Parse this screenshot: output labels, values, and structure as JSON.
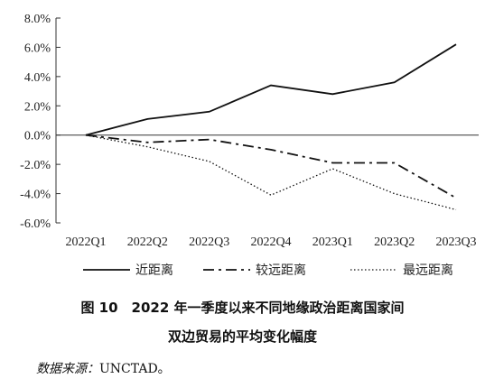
{
  "chart_data": {
    "type": "line",
    "categories": [
      "2022Q1",
      "2022Q2",
      "2022Q3",
      "2022Q4",
      "2023Q1",
      "2023Q2",
      "2023Q3"
    ],
    "series": [
      {
        "name": "近距离",
        "style": "solid",
        "values": [
          0.0,
          1.1,
          1.6,
          3.4,
          2.8,
          3.6,
          6.2
        ]
      },
      {
        "name": "较远距离",
        "style": "dash-dot",
        "values": [
          0.0,
          -0.5,
          -0.3,
          -1.0,
          -1.9,
          -1.9,
          -4.3
        ]
      },
      {
        "name": "最远距离",
        "style": "dotted",
        "values": [
          0.0,
          -0.8,
          -1.8,
          -4.1,
          -2.3,
          -4.0,
          -5.1
        ]
      }
    ],
    "y_ticks": [
      "8.0%",
      "6.0%",
      "4.0%",
      "2.0%",
      "0.0%",
      "-2.0%",
      "-4.0%",
      "-6.0%"
    ],
    "ylim": [
      -6,
      8
    ],
    "grid": false,
    "legend_position": "bottom",
    "line_color": "#111111"
  },
  "caption": {
    "line1": "图 10　2022 年一季度以来不同地缘政治距离国家间",
    "line2": "双边贸易的平均变化幅度"
  },
  "source": {
    "label": "数据来源：",
    "value": "UNCTAD。"
  }
}
